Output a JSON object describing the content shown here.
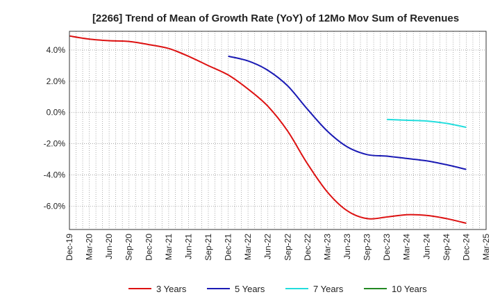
{
  "chart_data": {
    "type": "line",
    "title": "[2266]  Trend of Mean of Growth Rate (YoY) of 12Mo Mov Sum of Revenues",
    "xlabel": "",
    "ylabel": "",
    "x_range": [
      0,
      21
    ],
    "ylim": [
      -7.5,
      5.2
    ],
    "grid": true,
    "y_ticks": [
      {
        "value": 4,
        "label": "4.0%"
      },
      {
        "value": 2,
        "label": "2.0%"
      },
      {
        "value": 0,
        "label": "0.0%"
      },
      {
        "value": -2,
        "label": "-2.0%"
      },
      {
        "value": -4,
        "label": "-4.0%"
      },
      {
        "value": -6,
        "label": "-6.0%"
      }
    ],
    "x_ticks": [
      "Dec-19",
      "Mar-20",
      "Jun-20",
      "Sep-20",
      "Dec-20",
      "Mar-21",
      "Jun-21",
      "Sep-21",
      "Dec-21",
      "Mar-22",
      "Jun-22",
      "Sep-22",
      "Dec-22",
      "Mar-23",
      "Jun-23",
      "Sep-23",
      "Dec-23",
      "Mar-24",
      "Jun-24",
      "Sep-24",
      "Dec-24",
      "Mar-25"
    ],
    "legend_position": "bottom",
    "series": [
      {
        "name": "3 Years",
        "color": "#dd1111",
        "points": [
          [
            0,
            4.9
          ],
          [
            1,
            4.7
          ],
          [
            2,
            4.6
          ],
          [
            3,
            4.55
          ],
          [
            4,
            4.35
          ],
          [
            5,
            4.1
          ],
          [
            6,
            3.6
          ],
          [
            7,
            3.0
          ],
          [
            8,
            2.4
          ],
          [
            9,
            1.5
          ],
          [
            10,
            0.4
          ],
          [
            11,
            -1.2
          ],
          [
            12,
            -3.3
          ],
          [
            13,
            -5.1
          ],
          [
            14,
            -6.3
          ],
          [
            15,
            -6.8
          ],
          [
            16,
            -6.7
          ],
          [
            17,
            -6.55
          ],
          [
            18,
            -6.6
          ],
          [
            19,
            -6.8
          ],
          [
            20,
            -7.1
          ]
        ]
      },
      {
        "name": "5 Years",
        "color": "#1a1ab4",
        "points": [
          [
            8,
            3.6
          ],
          [
            9,
            3.3
          ],
          [
            10,
            2.7
          ],
          [
            11,
            1.7
          ],
          [
            12,
            0.2
          ],
          [
            13,
            -1.2
          ],
          [
            14,
            -2.2
          ],
          [
            15,
            -2.7
          ],
          [
            16,
            -2.8
          ],
          [
            17,
            -2.95
          ],
          [
            18,
            -3.1
          ],
          [
            19,
            -3.35
          ],
          [
            20,
            -3.65
          ]
        ]
      },
      {
        "name": "7 Years",
        "color": "#22dddd",
        "points": [
          [
            16,
            -0.45
          ],
          [
            17,
            -0.5
          ],
          [
            18,
            -0.55
          ],
          [
            19,
            -0.7
          ],
          [
            20,
            -0.95
          ]
        ]
      },
      {
        "name": "10 Years",
        "color": "#228822",
        "points": []
      }
    ]
  }
}
